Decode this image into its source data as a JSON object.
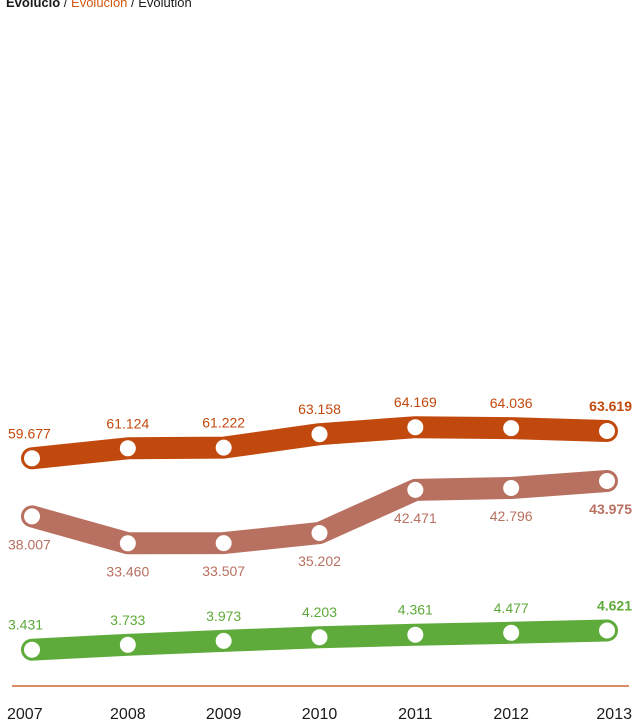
{
  "heading": {
    "catalan": "Evolució",
    "separator": " / ",
    "spanish": "Evolución",
    "english": "Evolution"
  },
  "colors": {
    "series_1": "#c2490d",
    "series_2": "#b87060",
    "series_3": "#5eaa3a",
    "axis": "#c2490d",
    "text": "#1a1a1a",
    "marker": "#ffffff"
  },
  "chart_data": {
    "type": "line",
    "categories": [
      "2007",
      "2008",
      "2009",
      "2010",
      "2011",
      "2012",
      "2013"
    ],
    "series": [
      {
        "values": [
          59677,
          61124,
          61222,
          63158,
          64169,
          64036,
          63619
        ],
        "labels": [
          "59.677",
          "61.124",
          "61.222",
          "63.158",
          "64.169",
          "64.036",
          "63.619"
        ],
        "color": "#c2490d",
        "label_position": "above"
      },
      {
        "values": [
          38007,
          33460,
          33507,
          35202,
          42471,
          42796,
          43975
        ],
        "labels": [
          "38.007",
          "33.460",
          "33.507",
          "35.202",
          "42.471",
          "42.796",
          "43.975"
        ],
        "color": "#b87060",
        "label_position": "below"
      },
      {
        "values": [
          3431,
          3733,
          3973,
          4203,
          4361,
          4477,
          4621
        ],
        "labels": [
          "3.431",
          "3.733",
          "3.973",
          "4.203",
          "4.361",
          "4.477",
          "4.621"
        ],
        "color": "#5eaa3a",
        "label_position": "above"
      }
    ],
    "last_label_bold": true,
    "grid": false,
    "legend": "none"
  }
}
